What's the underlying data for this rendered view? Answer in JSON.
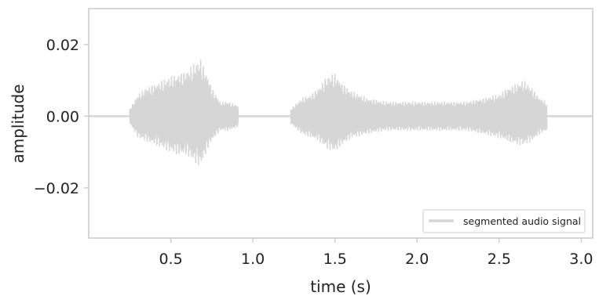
{
  "chart_data": {
    "type": "line",
    "title": "",
    "xlabel": "time (s)",
    "ylabel": "amplitude",
    "xlim": [
      0.0,
      3.07
    ],
    "ylim": [
      -0.034,
      0.03
    ],
    "xticks": [
      0.5,
      1.0,
      1.5,
      2.0,
      2.5,
      3.0
    ],
    "xtick_labels": [
      "0.5",
      "1.0",
      "1.5",
      "2.0",
      "2.5",
      "3.0"
    ],
    "yticks": [
      0.02,
      0.0,
      -0.02
    ],
    "ytick_labels": [
      "0.02",
      "0.00",
      "−0.02"
    ],
    "grid": false,
    "legend": {
      "entries": [
        "segmented audio signal"
      ],
      "placement": "lower-right"
    },
    "series": [
      {
        "name": "segmented audio signal",
        "color": "#d6d6d6",
        "silence_intervals": [
          [
            0.0,
            0.25
          ],
          [
            0.91,
            1.23
          ],
          [
            2.79,
            3.07
          ]
        ],
        "envelope": {
          "t": [
            0.25,
            0.3,
            0.35,
            0.4,
            0.45,
            0.5,
            0.55,
            0.6,
            0.65,
            0.68,
            0.72,
            0.75,
            0.8,
            0.85,
            0.91,
            1.23,
            1.3,
            1.35,
            1.4,
            1.45,
            1.5,
            1.55,
            1.6,
            1.7,
            1.8,
            1.9,
            2.0,
            2.1,
            2.2,
            2.3,
            2.4,
            2.5,
            2.55,
            2.6,
            2.65,
            2.7,
            2.75,
            2.79
          ],
          "upper": [
            0.002,
            0.006,
            0.008,
            0.009,
            0.01,
            0.011,
            0.012,
            0.013,
            0.015,
            0.016,
            0.012,
            0.008,
            0.004,
            0.004,
            0.003,
            0.002,
            0.005,
            0.006,
            0.008,
            0.011,
            0.012,
            0.009,
            0.007,
            0.005,
            0.004,
            0.004,
            0.004,
            0.004,
            0.004,
            0.004,
            0.005,
            0.006,
            0.008,
            0.009,
            0.01,
            0.008,
            0.005,
            0.004
          ],
          "lower": [
            -0.002,
            -0.006,
            -0.007,
            -0.008,
            -0.009,
            -0.01,
            -0.011,
            -0.011,
            -0.013,
            -0.014,
            -0.01,
            -0.007,
            -0.004,
            -0.004,
            -0.003,
            -0.002,
            -0.005,
            -0.006,
            -0.007,
            -0.009,
            -0.01,
            -0.008,
            -0.006,
            -0.005,
            -0.004,
            -0.004,
            -0.004,
            -0.004,
            -0.004,
            -0.004,
            -0.005,
            -0.006,
            -0.007,
            -0.008,
            -0.008,
            -0.007,
            -0.005,
            -0.004
          ]
        }
      }
    ]
  }
}
